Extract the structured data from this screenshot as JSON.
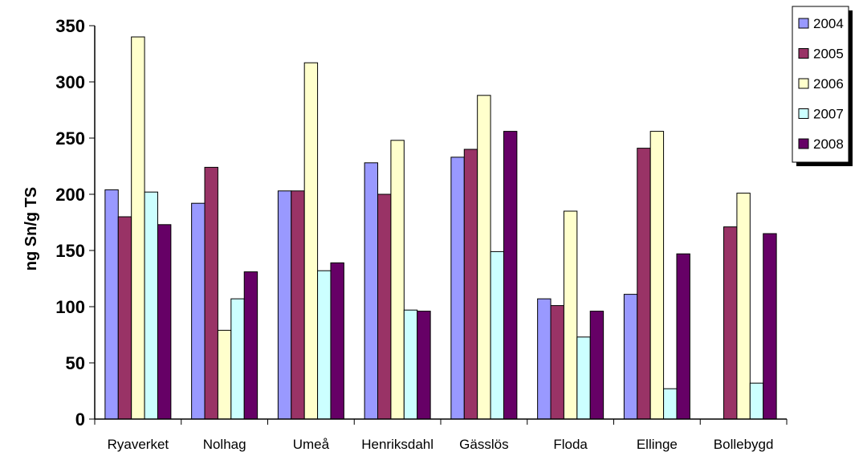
{
  "chart_data": {
    "type": "bar",
    "title": "",
    "xlabel": "",
    "ylabel": "ng Sn/g TS",
    "ylim": [
      0,
      350
    ],
    "yticks": [
      0,
      50,
      100,
      150,
      200,
      250,
      300,
      350
    ],
    "grid": false,
    "legend_position": "top-right",
    "categories": [
      "Ryaverket",
      "Nolhag",
      "Umeå",
      "Henriksdahl",
      "Gässlös",
      "Floda",
      "Ellinge",
      "Bollebygd"
    ],
    "series": [
      {
        "name": "2004",
        "color": "#9999ff",
        "values": [
          204,
          192,
          203,
          228,
          233,
          107,
          111,
          null
        ]
      },
      {
        "name": "2005",
        "color": "#993366",
        "values": [
          180,
          224,
          203,
          200,
          240,
          101,
          241,
          171
        ]
      },
      {
        "name": "2006",
        "color": "#ffffcc",
        "values": [
          340,
          79,
          317,
          248,
          288,
          185,
          256,
          201
        ]
      },
      {
        "name": "2007",
        "color": "#ccffff",
        "values": [
          202,
          107,
          132,
          97,
          149,
          73,
          27,
          32
        ]
      },
      {
        "name": "2008",
        "color": "#660066",
        "values": [
          173,
          131,
          139,
          96,
          256,
          96,
          147,
          165
        ]
      }
    ]
  }
}
